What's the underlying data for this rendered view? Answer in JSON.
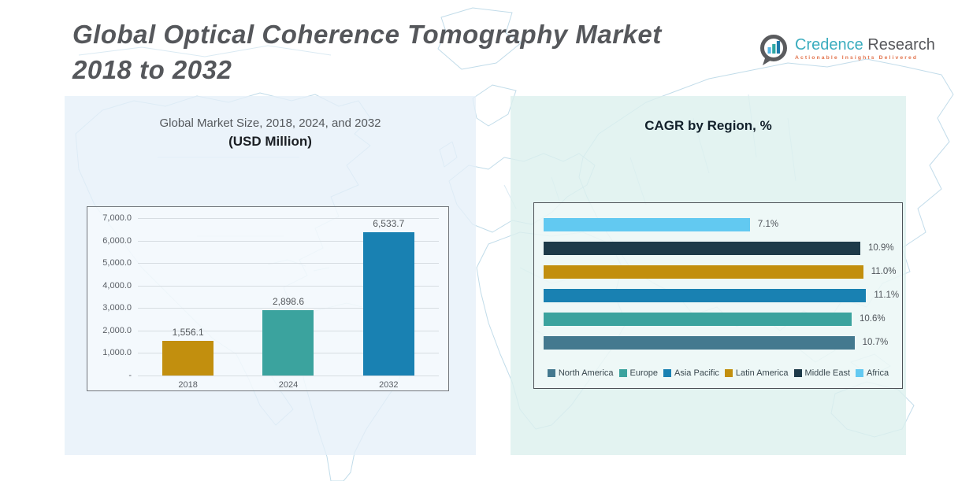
{
  "header": {
    "title_line1": "Global Optical Coherence Tomography Market",
    "title_line2": "2018 to 2032",
    "logo": {
      "brand_primary": "Credence",
      "brand_secondary": "Research",
      "tagline": "Actionable Insights Delivered",
      "icon": "bar-chart-speech-bubble-icon",
      "brand_primary_color": "#3aacbe",
      "brand_secondary_color": "#56575b",
      "tagline_color": "#e2734c"
    }
  },
  "chart_data": [
    {
      "type": "bar",
      "orientation": "vertical",
      "title": "Global Market Size, 2018, 2024, and 2032",
      "subtitle": "(USD Million)",
      "categories": [
        "2018",
        "2024",
        "2032"
      ],
      "values": [
        1556.1,
        2898.6,
        6533.7
      ],
      "value_labels": [
        "1,556.1",
        "2,898.6",
        "6,533.7"
      ],
      "bar_colors": [
        "#c28f0e",
        "#3ba39e",
        "#1981b2"
      ],
      "xlabel": "",
      "ylabel": "",
      "ylim": [
        0,
        7000
      ],
      "ytick_labels": [
        "7,000.0",
        "6,000.0",
        "5,000.0",
        "4,000.0",
        "3,000.0",
        "2,000.0",
        "1,000.0",
        "-"
      ],
      "grid": true,
      "legend_position": "none"
    },
    {
      "type": "bar",
      "orientation": "horizontal",
      "title": "CAGR by Region, %",
      "xlim": [
        0,
        11.1
      ],
      "grid": false,
      "legend_position": "bottom",
      "bars": [
        {
          "region": "Africa",
          "value": 7.1,
          "label": "7.1%",
          "color": "#62c9f1"
        },
        {
          "region": "Middle East",
          "value": 10.9,
          "label": "10.9%",
          "color": "#1d3a49"
        },
        {
          "region": "Latin America",
          "value": 11.0,
          "label": "11.0%",
          "color": "#c28f0e"
        },
        {
          "region": "Asia Pacific",
          "value": 11.1,
          "label": "11.1%",
          "color": "#1981b2"
        },
        {
          "region": "Europe",
          "value": 10.6,
          "label": "10.6%",
          "color": "#3ba39e"
        },
        {
          "region": "North America",
          "value": 10.7,
          "label": "10.7%",
          "color": "#44798f"
        }
      ],
      "legend": [
        {
          "label": "North America",
          "color": "#44798f"
        },
        {
          "label": "Europe",
          "color": "#3ba39e"
        },
        {
          "label": "Asia Pacific",
          "color": "#1981b2"
        },
        {
          "label": "Latin America",
          "color": "#c28f0e"
        },
        {
          "label": "Middle East",
          "color": "#1d3a49"
        },
        {
          "label": "Africa",
          "color": "#62c9f1"
        }
      ]
    }
  ]
}
